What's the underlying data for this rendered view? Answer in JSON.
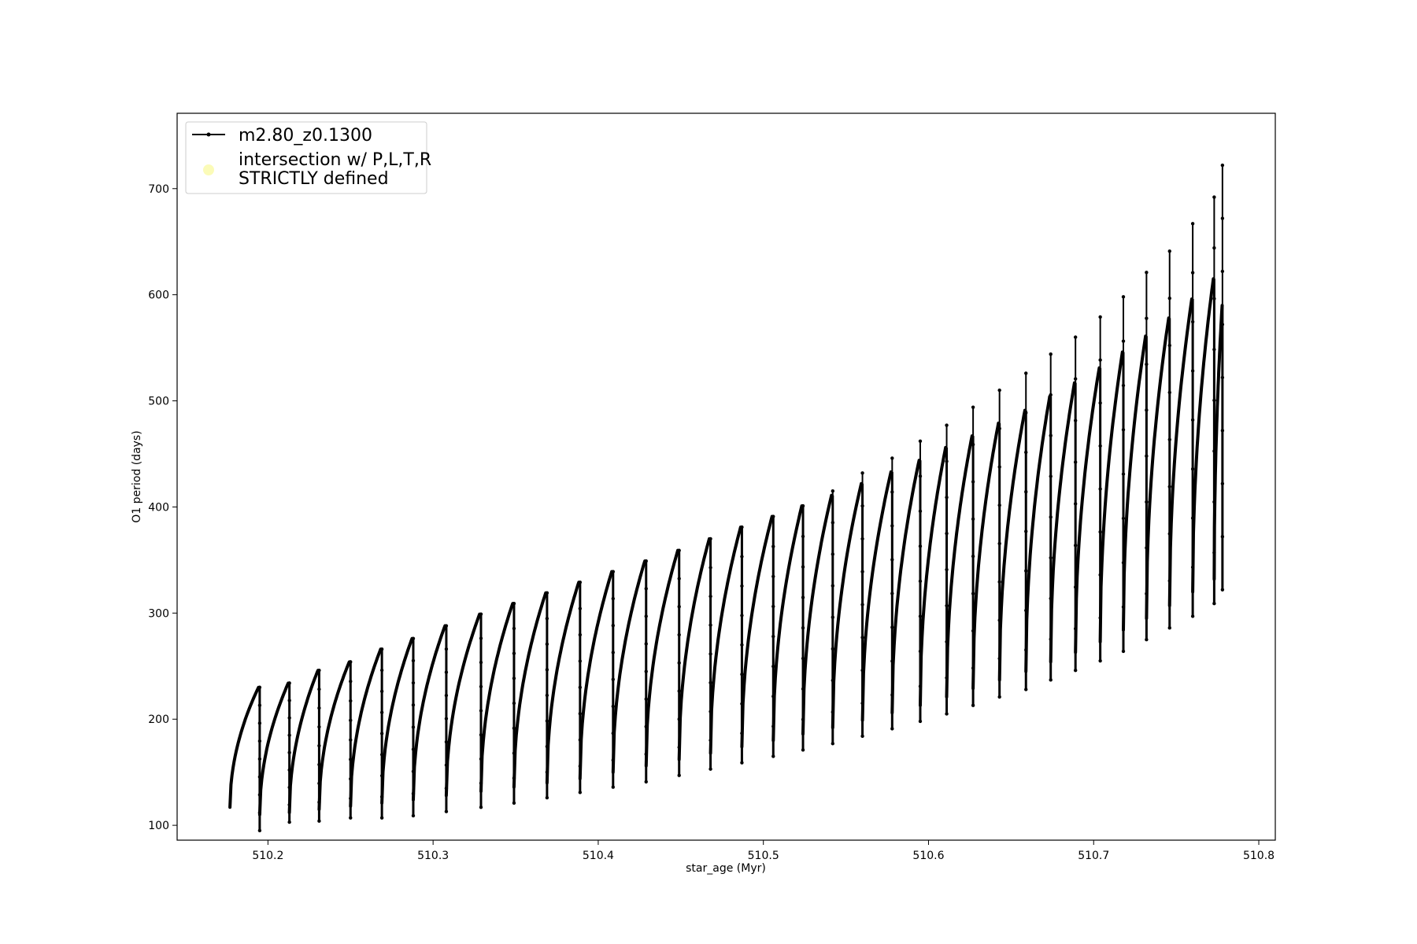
{
  "chart_data": {
    "type": "line",
    "title": "",
    "xlabel": "star_age (Myr)",
    "ylabel": "O1 period (days)",
    "xlim": [
      510.145,
      510.81
    ],
    "ylim": [
      86,
      771
    ],
    "x_ticks": [
      510.2,
      510.3,
      510.4,
      510.5,
      510.6,
      510.7,
      510.8
    ],
    "x_tick_labels": [
      "510.2",
      "510.3",
      "510.4",
      "510.5",
      "510.6",
      "510.7",
      "510.8"
    ],
    "y_ticks": [
      100,
      200,
      300,
      400,
      500,
      600,
      700
    ],
    "y_tick_labels": [
      "100",
      "200",
      "300",
      "400",
      "500",
      "600",
      "700"
    ],
    "grid": false,
    "legend_position": "top-left",
    "legend": [
      {
        "label": "m2.80_z0.1300",
        "marker": "line-dot",
        "color": "#000000"
      },
      {
        "label": "intersection w/ P,L,T,R\nSTRICTLY defined",
        "marker": "circle",
        "color": "#fbfbb8"
      }
    ],
    "series": [
      {
        "name": "m2.80_z0.1300",
        "color": "#000000",
        "cycles": [
          {
            "x0": 510.177,
            "x1": 510.195,
            "start": 117,
            "peak": 230,
            "min": 95,
            "spike": 191
          },
          {
            "x0": 510.195,
            "x1": 510.213,
            "start": 110,
            "peak": 234,
            "min": 103,
            "spike": 215
          },
          {
            "x0": 510.213,
            "x1": 510.231,
            "start": 112,
            "peak": 246,
            "min": 104,
            "spike": 225
          },
          {
            "x0": 510.231,
            "x1": 510.25,
            "start": 115,
            "peak": 254,
            "min": 107,
            "spike": 235
          },
          {
            "x0": 510.25,
            "x1": 510.269,
            "start": 118,
            "peak": 266,
            "min": 107,
            "spike": 245
          },
          {
            "x0": 510.269,
            "x1": 510.288,
            "start": 121,
            "peak": 276,
            "min": 109,
            "spike": 258
          },
          {
            "x0": 510.288,
            "x1": 510.308,
            "start": 124,
            "peak": 288,
            "min": 113,
            "spike": 268
          },
          {
            "x0": 510.308,
            "x1": 510.329,
            "start": 128,
            "peak": 299,
            "min": 117,
            "spike": 280
          },
          {
            "x0": 510.329,
            "x1": 510.349,
            "start": 132,
            "peak": 309,
            "min": 121,
            "spike": 290
          },
          {
            "x0": 510.349,
            "x1": 510.369,
            "start": 136,
            "peak": 319,
            "min": 126,
            "spike": 300
          },
          {
            "x0": 510.369,
            "x1": 510.389,
            "start": 140,
            "peak": 329,
            "min": 131,
            "spike": 310
          },
          {
            "x0": 510.389,
            "x1": 510.409,
            "start": 144,
            "peak": 339,
            "min": 136,
            "spike": 320
          },
          {
            "x0": 510.409,
            "x1": 510.429,
            "start": 150,
            "peak": 349,
            "min": 141,
            "spike": 330
          },
          {
            "x0": 510.429,
            "x1": 510.449,
            "start": 156,
            "peak": 359,
            "min": 147,
            "spike": 340
          },
          {
            "x0": 510.449,
            "x1": 510.468,
            "start": 162,
            "peak": 370,
            "min": 153,
            "spike": 350
          },
          {
            "x0": 510.468,
            "x1": 510.487,
            "start": 168,
            "peak": 381,
            "min": 159,
            "spike": 372
          },
          {
            "x0": 510.487,
            "x1": 510.506,
            "start": 174,
            "peak": 391,
            "min": 165,
            "spike": 387
          },
          {
            "x0": 510.506,
            "x1": 510.524,
            "start": 180,
            "peak": 401,
            "min": 171,
            "spike": 401
          },
          {
            "x0": 510.524,
            "x1": 510.542,
            "start": 186,
            "peak": 411,
            "min": 177,
            "spike": 415
          },
          {
            "x0": 510.542,
            "x1": 510.56,
            "start": 192,
            "peak": 422,
            "min": 184,
            "spike": 432
          },
          {
            "x0": 510.56,
            "x1": 510.578,
            "start": 199,
            "peak": 433,
            "min": 191,
            "spike": 446
          },
          {
            "x0": 510.578,
            "x1": 510.595,
            "start": 206,
            "peak": 444,
            "min": 198,
            "spike": 462
          },
          {
            "x0": 510.595,
            "x1": 510.611,
            "start": 213,
            "peak": 456,
            "min": 205,
            "spike": 477
          },
          {
            "x0": 510.611,
            "x1": 510.627,
            "start": 221,
            "peak": 467,
            "min": 213,
            "spike": 494
          },
          {
            "x0": 510.627,
            "x1": 510.643,
            "start": 229,
            "peak": 479,
            "min": 221,
            "spike": 510
          },
          {
            "x0": 510.643,
            "x1": 510.659,
            "start": 237,
            "peak": 491,
            "min": 228,
            "spike": 526
          },
          {
            "x0": 510.659,
            "x1": 510.674,
            "start": 245,
            "peak": 504,
            "min": 237,
            "spike": 544
          },
          {
            "x0": 510.674,
            "x1": 510.689,
            "start": 254,
            "peak": 517,
            "min": 246,
            "spike": 560
          },
          {
            "x0": 510.689,
            "x1": 510.704,
            "start": 263,
            "peak": 531,
            "min": 255,
            "spike": 579
          },
          {
            "x0": 510.704,
            "x1": 510.718,
            "start": 273,
            "peak": 546,
            "min": 264,
            "spike": 598
          },
          {
            "x0": 510.718,
            "x1": 510.732,
            "start": 284,
            "peak": 561,
            "min": 275,
            "spike": 621
          },
          {
            "x0": 510.732,
            "x1": 510.746,
            "start": 295,
            "peak": 578,
            "min": 286,
            "spike": 641
          },
          {
            "x0": 510.746,
            "x1": 510.76,
            "start": 307,
            "peak": 596,
            "min": 297,
            "spike": 667
          },
          {
            "x0": 510.76,
            "x1": 510.773,
            "start": 320,
            "peak": 615,
            "min": 309,
            "spike": 692
          },
          {
            "x0": 510.773,
            "x1": 510.778,
            "start": 332,
            "peak": 590,
            "min": 322,
            "spike": 722
          }
        ]
      }
    ]
  }
}
